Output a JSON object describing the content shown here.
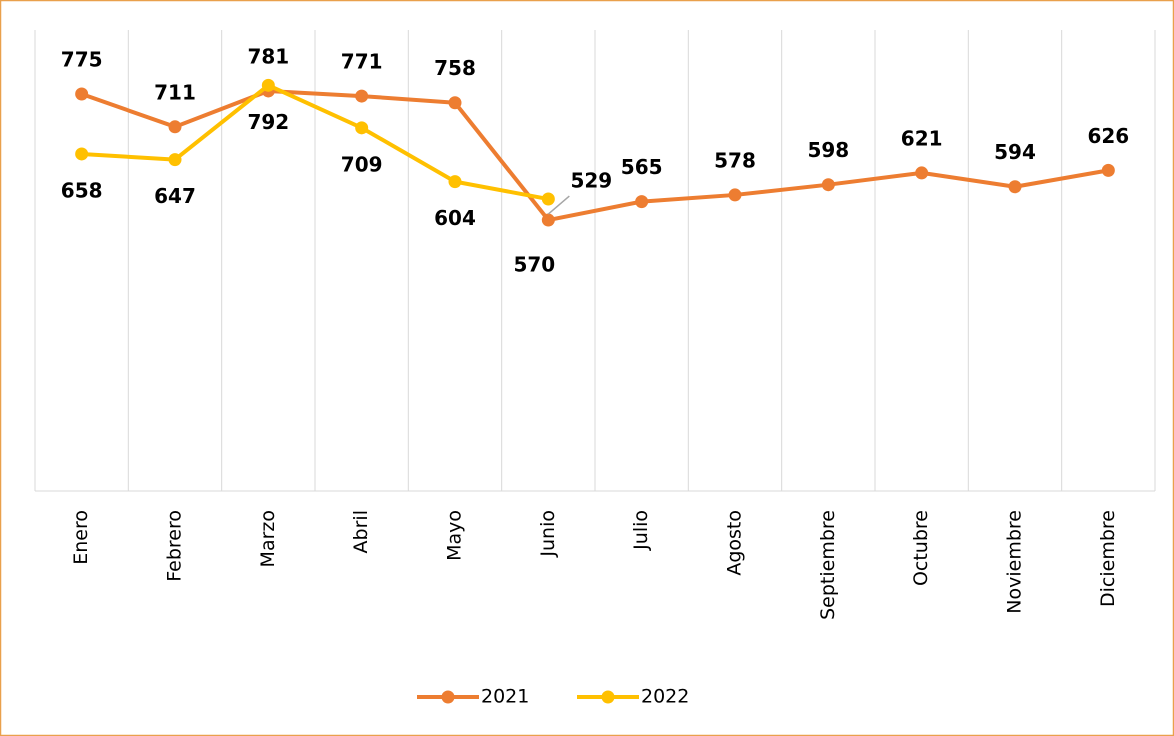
{
  "chart_data": {
    "type": "line",
    "categories": [
      "Enero",
      "Febrero",
      "Marzo",
      "Abril",
      "Mayo",
      "Junio",
      "Julio",
      "Agosto",
      "Septiembre",
      "Octubre",
      "Noviembre",
      "Diciembre"
    ],
    "series": [
      {
        "name": "2021",
        "color": "#ed7d31",
        "values": [
          775,
          711,
          781,
          771,
          758,
          529,
          565,
          578,
          598,
          621,
          594,
          626
        ]
      },
      {
        "name": "2022",
        "color": "#ffc000",
        "values": [
          658,
          647,
          792,
          709,
          604,
          570,
          null,
          null,
          null,
          null,
          null,
          null
        ]
      }
    ],
    "ylim": [
      0,
      900
    ],
    "legend": "bottom",
    "grid": true
  }
}
